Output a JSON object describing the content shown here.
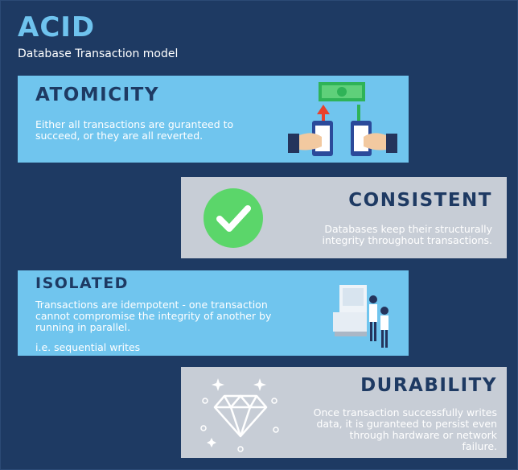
{
  "header": {
    "title": "ACID",
    "subtitle": "Database Transaction model"
  },
  "cards": {
    "atomicity": {
      "heading": "ATOMICITY",
      "description": "Either all transactions are guranteed to succeed, or they are all reverted.",
      "icon": "money-transfer-icon"
    },
    "consistent": {
      "heading": "CONSISTENT",
      "description": "Databases keep their structurally integrity throughout transactions.",
      "icon": "checkmark-icon"
    },
    "isolated": {
      "heading": "ISOLATED",
      "description": "Transactions are idempotent - one transaction cannot compromise the integrity of another by running in parallel.",
      "note": "i.e. sequential writes",
      "icon": "queue-people-icon"
    },
    "durability": {
      "heading": "DURABILITY",
      "description": "Once transaction successfully writes data, it is guranteed to persist even through hardware or network failure.",
      "icon": "diamond-icon"
    }
  },
  "colors": {
    "background": "#1e3a63",
    "accent_blue": "#70c5ee",
    "card_grey": "#c7cdd6",
    "check_green": "#5bd66a"
  }
}
